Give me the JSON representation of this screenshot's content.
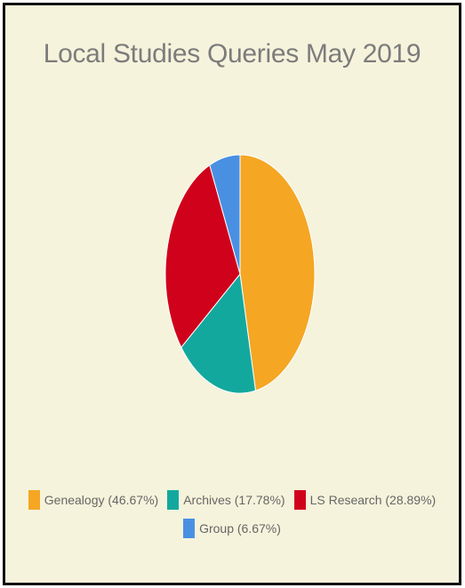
{
  "chart_data": {
    "type": "pie",
    "title": "Local Studies Queries May 2019",
    "slices": [
      {
        "label": "Genealogy (46.67%)",
        "value": 46.67,
        "color": "#f5a623"
      },
      {
        "label": "Archives (17.78%)",
        "value": 17.78,
        "color": "#13a89e"
      },
      {
        "label": "LS Research (28.89%)",
        "value": 28.89,
        "color": "#d0021b"
      },
      {
        "label": "Group (6.67%)",
        "value": 6.67,
        "color": "#4a90e2"
      }
    ],
    "legend_position": "bottom"
  }
}
